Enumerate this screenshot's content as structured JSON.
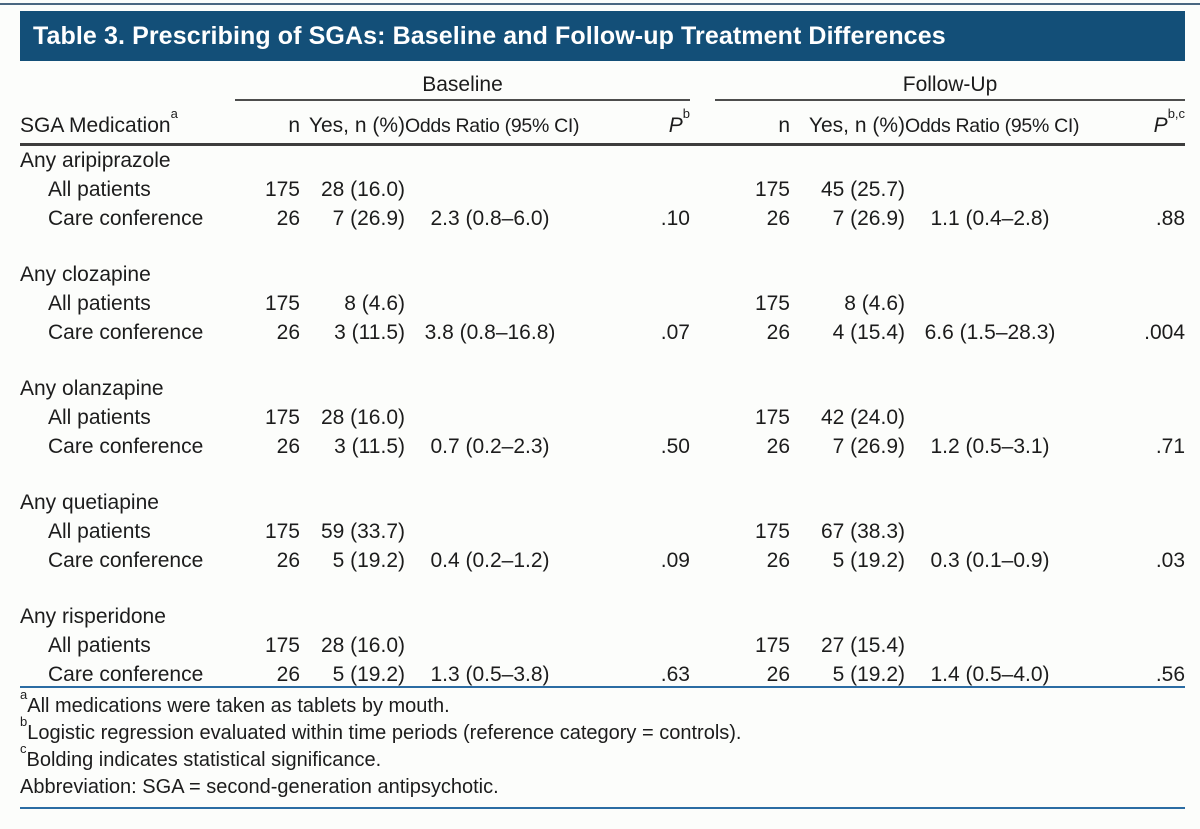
{
  "title": "Table 3. Prescribing of SGAs: Baseline and Follow-up Treatment Differences",
  "colors": {
    "title_bar_bg": "#134F78",
    "title_text": "#FFFFFF",
    "blue_rule": "#2B6CA3",
    "header_rule": "#3D3D3D",
    "spanner_rule": "#4D4D4D",
    "body_text": "#1C1C1C",
    "page_bg": "#FCFDFB"
  },
  "header": {
    "row_label": "SGA Medication",
    "row_label_sup": "a",
    "baseline_label": "Baseline",
    "followup_label": "Follow-Up",
    "cols": [
      "n",
      "Yes, n (%)",
      "Odds Ratio (95% CI)"
    ],
    "p_label": "P",
    "p_sup_baseline": "b",
    "p_sup_followup": "b,c"
  },
  "sections": [
    {
      "name": "Any aripiprazole",
      "rows": [
        {
          "label": "All patients",
          "b": [
            "175",
            "28 (16.0)",
            "",
            ""
          ],
          "f": [
            "175",
            "45 (25.7)",
            "",
            ""
          ]
        },
        {
          "label": "Care conference",
          "b": [
            "26",
            "7 (26.9)",
            "2.3 (0.8–6.0)",
            ".10"
          ],
          "f": [
            "26",
            "7 (26.9)",
            "1.1 (0.4–2.8)",
            ".88"
          ],
          "fp_bold": false
        }
      ]
    },
    {
      "name": "Any clozapine",
      "rows": [
        {
          "label": "All patients",
          "b": [
            "175",
            "8 (4.6)",
            "",
            ""
          ],
          "f": [
            "175",
            "8 (4.6)",
            "",
            ""
          ]
        },
        {
          "label": "Care conference",
          "b": [
            "26",
            "3 (11.5)",
            "3.8 (0.8–16.8)",
            ".07"
          ],
          "f": [
            "26",
            "4 (15.4)",
            "6.6 (1.5–28.3)",
            ".004"
          ],
          "fp_bold": true
        }
      ]
    },
    {
      "name": "Any olanzapine",
      "rows": [
        {
          "label": "All patients",
          "b": [
            "175",
            "28 (16.0)",
            "",
            ""
          ],
          "f": [
            "175",
            "42 (24.0)",
            "",
            ""
          ]
        },
        {
          "label": "Care conference",
          "b": [
            "26",
            "3 (11.5)",
            "0.7 (0.2–2.3)",
            ".50"
          ],
          "f": [
            "26",
            "7 (26.9)",
            "1.2 (0.5–3.1)",
            ".71"
          ],
          "fp_bold": false
        }
      ]
    },
    {
      "name": "Any quetiapine",
      "rows": [
        {
          "label": "All patients",
          "b": [
            "175",
            "59 (33.7)",
            "",
            ""
          ],
          "f": [
            "175",
            "67 (38.3)",
            "",
            ""
          ]
        },
        {
          "label": "Care conference",
          "b": [
            "26",
            "5 (19.2)",
            "0.4 (0.2–1.2)",
            ".09"
          ],
          "f": [
            "26",
            "5 (19.2)",
            "0.3 (0.1–0.9)",
            ".03"
          ],
          "fp_bold": true
        }
      ]
    },
    {
      "name": "Any risperidone",
      "rows": [
        {
          "label": "All patients",
          "b": [
            "175",
            "28 (16.0)",
            "",
            ""
          ],
          "f": [
            "175",
            "27 (15.4)",
            "",
            ""
          ]
        },
        {
          "label": "Care conference",
          "b": [
            "26",
            "5 (19.2)",
            "1.3 (0.5–3.8)",
            ".63"
          ],
          "f": [
            "26",
            "5 (19.2)",
            "1.4 (0.5–4.0)",
            ".56"
          ],
          "fp_bold": false
        }
      ]
    }
  ],
  "footnotes": [
    {
      "sup": "a",
      "text": "All medications were taken as tablets by mouth."
    },
    {
      "sup": "b",
      "text": "Logistic regression evaluated within time periods (reference category = controls)."
    },
    {
      "sup": "c",
      "text": "Bolding indicates statistical significance."
    },
    {
      "sup": "",
      "text": "Abbreviation: SGA = second-generation antipsychotic."
    }
  ]
}
